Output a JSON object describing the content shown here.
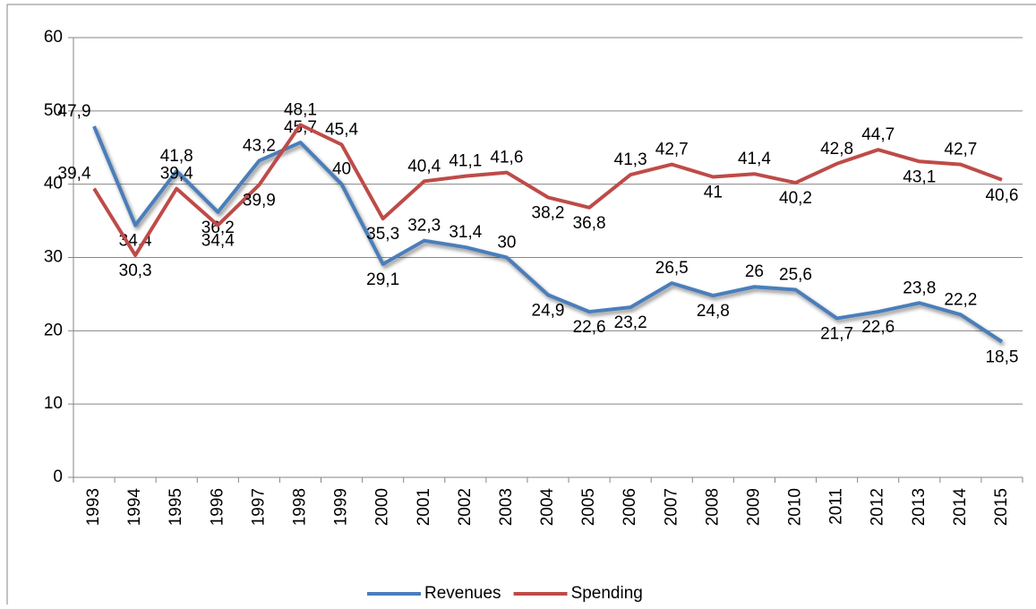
{
  "chart_data": {
    "type": "line",
    "categories": [
      "1993",
      "1994",
      "1995",
      "1996",
      "1997",
      "1998",
      "1999",
      "2000",
      "2001",
      "2002",
      "2003",
      "2004",
      "2005",
      "2006",
      "2007",
      "2008",
      "2009",
      "2010",
      "2011",
      "2012",
      "2013",
      "2014",
      "2015"
    ],
    "series": [
      {
        "name": "Revenues",
        "color": "#4a7ebb",
        "values": [
          47.9,
          34.4,
          41.8,
          36.2,
          43.2,
          45.7,
          40,
          29.1,
          32.3,
          31.4,
          30,
          24.9,
          22.6,
          23.2,
          26.5,
          24.8,
          26,
          25.6,
          21.7,
          22.6,
          23.8,
          22.2,
          18.5
        ],
        "value_labels": [
          "47,9",
          "34,4",
          "41,8",
          "36,2",
          "43,2",
          "45,7",
          "40",
          "29,1",
          "32,3",
          "31,4",
          "30",
          "24,9",
          "22,6",
          "23,2",
          "26,5",
          "24,8",
          "26",
          "25,6",
          "21,7",
          "22,6",
          "23,8",
          "22,2",
          "18,5"
        ]
      },
      {
        "name": "Spending",
        "color": "#be4b48",
        "values": [
          39.4,
          30.3,
          39.4,
          34.4,
          39.9,
          48.1,
          45.4,
          35.3,
          40.4,
          41.1,
          41.6,
          38.2,
          36.8,
          41.3,
          42.7,
          41,
          41.4,
          40.2,
          42.8,
          44.7,
          43.1,
          42.7,
          40.6
        ],
        "value_labels": [
          "39,4",
          "30,3",
          "39,4",
          "34,4",
          "39,9",
          "48,1",
          "45,4",
          "35,3",
          "40,4",
          "41,1",
          "41,6",
          "38,2",
          "36,8",
          "41,3",
          "42,7",
          "41",
          "41,4",
          "40,2",
          "42,8",
          "44,7",
          "43,1",
          "42,7",
          "40,6"
        ]
      }
    ],
    "ylim": [
      0,
      60
    ],
    "yticks": [
      0,
      10,
      20,
      30,
      40,
      50,
      60
    ],
    "grid": true,
    "legend": "bottom"
  }
}
